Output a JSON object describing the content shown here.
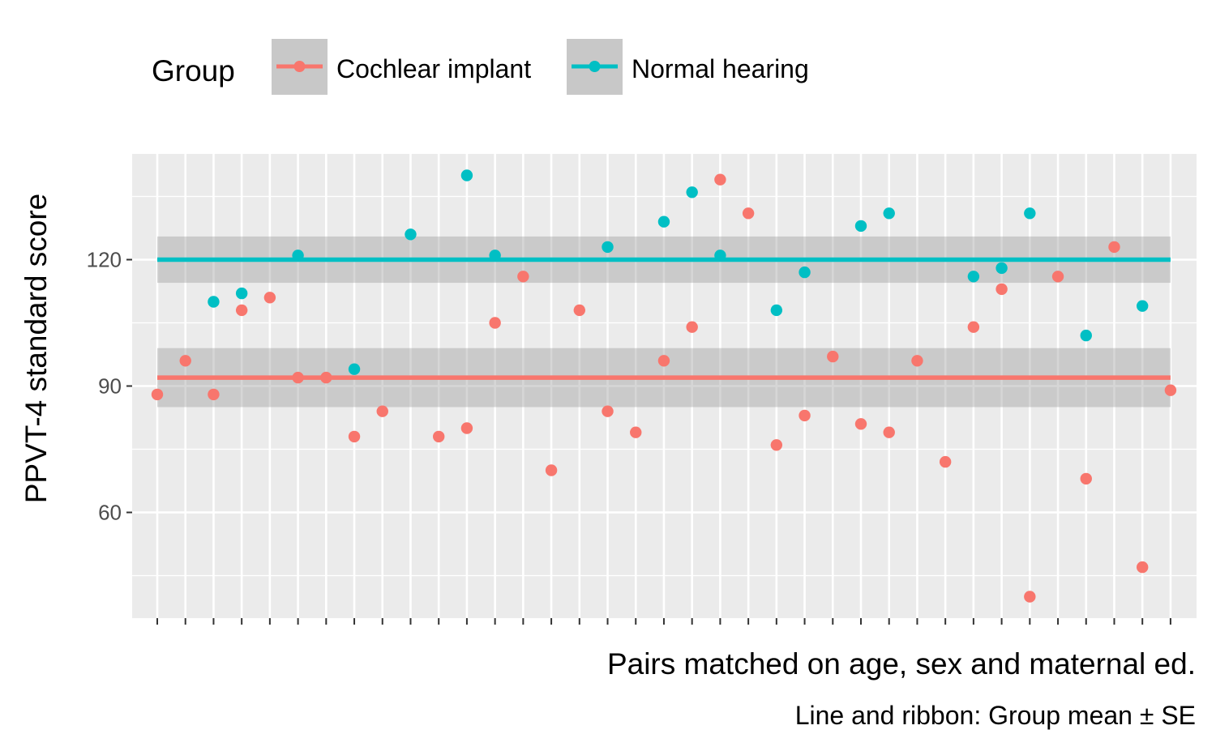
{
  "chart_data": {
    "type": "scatter",
    "title": "",
    "xlabel": "Pairs matched on age, sex and maternal ed.",
    "ylabel": "PPVT-4 standard score",
    "caption": "Line and ribbon: Group mean ± SE",
    "ylim": [
      37,
      147
    ],
    "yticks": [
      60,
      90,
      120
    ],
    "yticklabels": [
      "60",
      "90",
      "120"
    ],
    "n_pairs": 37,
    "grid": true,
    "legend": {
      "title": "Group",
      "position": "top",
      "entries": [
        "Cochlear implant",
        "Normal hearing"
      ]
    },
    "series": [
      {
        "name": "Cochlear implant",
        "color": "#F8766D",
        "mean": 92,
        "se": 7,
        "values": [
          88,
          96,
          88,
          108,
          111,
          92,
          92,
          78,
          84,
          78,
          80,
          105,
          116,
          70,
          108,
          84,
          79,
          96,
          104,
          139,
          131,
          76,
          83,
          97,
          81,
          79,
          96,
          72,
          104,
          113,
          40,
          116,
          68,
          123,
          47,
          89
        ]
      },
      {
        "name": "Normal hearing",
        "color": "#00BFC4",
        "mean": 120,
        "se": 5.5,
        "values": [
          110,
          112,
          121,
          94,
          126,
          140,
          121,
          123,
          129,
          136,
          121,
          108,
          117,
          128,
          131,
          116,
          118,
          131,
          102,
          109
        ]
      }
    ],
    "points": {
      "Cochlear implant": [
        [
          1,
          88
        ],
        [
          2,
          96
        ],
        [
          3,
          88
        ],
        [
          4,
          108
        ],
        [
          5,
          111
        ],
        [
          6,
          92
        ],
        [
          7,
          92
        ],
        [
          8,
          78
        ],
        [
          9,
          84
        ],
        [
          11,
          78
        ],
        [
          12,
          80
        ],
        [
          13,
          105
        ],
        [
          14,
          116
        ],
        [
          15,
          70
        ],
        [
          16,
          108
        ],
        [
          17,
          84
        ],
        [
          18,
          79
        ],
        [
          19,
          96
        ],
        [
          20,
          104
        ],
        [
          21,
          139
        ],
        [
          22,
          131
        ],
        [
          23,
          76
        ],
        [
          24,
          83
        ],
        [
          25,
          97
        ],
        [
          26,
          81
        ],
        [
          27,
          79
        ],
        [
          28,
          96
        ],
        [
          29,
          72
        ],
        [
          30,
          104
        ],
        [
          31,
          113
        ],
        [
          32,
          40
        ],
        [
          33,
          116
        ],
        [
          34,
          68
        ],
        [
          35,
          123
        ],
        [
          36,
          47
        ],
        [
          37,
          89
        ]
      ],
      "Normal hearing": [
        [
          3,
          110
        ],
        [
          4,
          112
        ],
        [
          6,
          121
        ],
        [
          8,
          94
        ],
        [
          10,
          126
        ],
        [
          12,
          140
        ],
        [
          13,
          121
        ],
        [
          17,
          123
        ],
        [
          19,
          129
        ],
        [
          20,
          136
        ],
        [
          21,
          121
        ],
        [
          23,
          108
        ],
        [
          24,
          117
        ],
        [
          26,
          128
        ],
        [
          27,
          131
        ],
        [
          30,
          116
        ],
        [
          31,
          118
        ],
        [
          32,
          131
        ],
        [
          34,
          102
        ],
        [
          36,
          109
        ]
      ]
    }
  }
}
